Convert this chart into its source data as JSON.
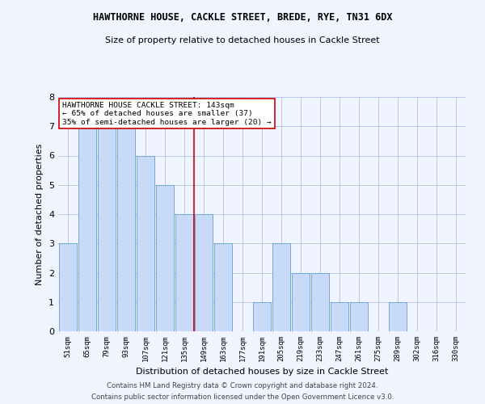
{
  "title": "HAWTHORNE HOUSE, CACKLE STREET, BREDE, RYE, TN31 6DX",
  "subtitle": "Size of property relative to detached houses in Cackle Street",
  "xlabel": "Distribution of detached houses by size in Cackle Street",
  "ylabel": "Number of detached properties",
  "categories": [
    "51sqm",
    "65sqm",
    "79sqm",
    "93sqm",
    "107sqm",
    "121sqm",
    "135sqm",
    "149sqm",
    "163sqm",
    "177sqm",
    "191sqm",
    "205sqm",
    "219sqm",
    "233sqm",
    "247sqm",
    "261sqm",
    "275sqm",
    "289sqm",
    "302sqm",
    "316sqm",
    "330sqm"
  ],
  "values": [
    3,
    7,
    7,
    7,
    6,
    5,
    4,
    4,
    3,
    0,
    1,
    3,
    2,
    2,
    1,
    1,
    0,
    1,
    0,
    0,
    0
  ],
  "bar_color": "#c9daf8",
  "bar_edge_color": "#6fa8dc",
  "vline_index": 6.5,
  "vline_color": "#cc0000",
  "annotation_text": "HAWTHORNE HOUSE CACKLE STREET: 143sqm\n← 65% of detached houses are smaller (37)\n35% of semi-detached houses are larger (20) →",
  "annotation_box_color": "#ffffff",
  "annotation_box_edge": "#cc0000",
  "ylim": [
    0,
    8
  ],
  "yticks": [
    0,
    1,
    2,
    3,
    4,
    5,
    6,
    7,
    8
  ],
  "footer1": "Contains HM Land Registry data © Crown copyright and database right 2024.",
  "footer2": "Contains public sector information licensed under the Open Government Licence v3.0.",
  "bg_color": "#f0f4ff",
  "grid_color": "#b8c8e8",
  "title_fontsize": 8.5,
  "subtitle_fontsize": 8,
  "ylabel_fontsize": 8,
  "xlabel_fontsize": 8
}
